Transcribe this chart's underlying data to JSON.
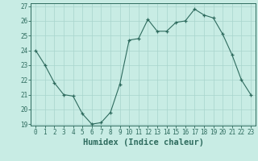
{
  "x": [
    0,
    1,
    2,
    3,
    4,
    5,
    6,
    7,
    8,
    9,
    10,
    11,
    12,
    13,
    14,
    15,
    16,
    17,
    18,
    19,
    20,
    21,
    22,
    23
  ],
  "y": [
    24,
    23,
    21.8,
    21,
    20.9,
    19.7,
    19,
    19.1,
    19.8,
    21.7,
    24.7,
    24.8,
    26.1,
    25.3,
    25.3,
    25.9,
    26,
    26.8,
    26.4,
    26.2,
    25.1,
    23.7,
    22,
    21
  ],
  "line_color": "#2e6b5e",
  "marker_color": "#2e6b5e",
  "bg_color": "#c8ece4",
  "grid_color": "#a8d4cc",
  "xlabel": "Humidex (Indice chaleur)",
  "ylim": [
    19,
    27
  ],
  "xlim": [
    -0.5,
    23.5
  ],
  "yticks": [
    19,
    20,
    21,
    22,
    23,
    24,
    25,
    26,
    27
  ],
  "xticks": [
    0,
    1,
    2,
    3,
    4,
    5,
    6,
    7,
    8,
    9,
    10,
    11,
    12,
    13,
    14,
    15,
    16,
    17,
    18,
    19,
    20,
    21,
    22,
    23
  ],
  "tick_label_fontsize": 5.5,
  "xlabel_fontsize": 7.5,
  "tick_color": "#2e6b5e",
  "label_color": "#2e6b5e",
  "spine_color": "#2e6b5e"
}
